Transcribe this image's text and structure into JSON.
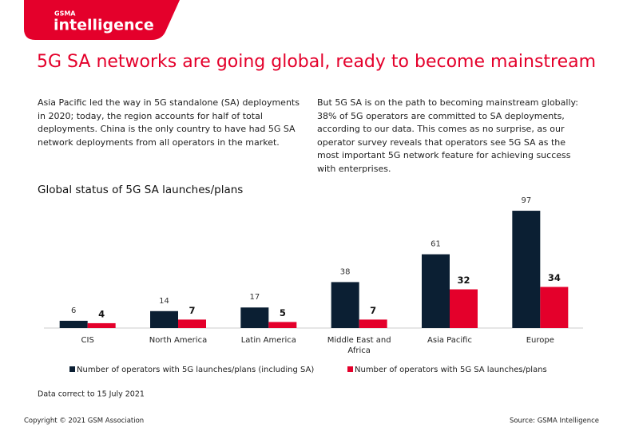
{
  "header": {
    "brand_small": "GSMA",
    "brand": "intelligence",
    "title": "5G SA networks are going global, ready to become mainstream"
  },
  "paragraphs": [
    "Asia Pacific led the way in 5G standalone (SA) deployments in 2020; today, the region accounts for half of total deployments. China is the only country to have had 5G SA network deployments from all operators in the market.",
    "But 5G SA is on the path to becoming mainstream globally: 38% of 5G operators are committed to SA deployments, according to our data. This comes as no surprise, as our operator survey reveals that operators see 5G SA as the most important 5G network feature for achieving success with enterprises."
  ],
  "chart_data": {
    "type": "bar",
    "title": "Global status of 5G SA launches/plans",
    "categories": [
      "CIS",
      "North America",
      "Latin America",
      "Middle East and Africa",
      "Asia Pacific",
      "Europe"
    ],
    "series": [
      {
        "name": "Number of operators with 5G launches/plans (including SA)",
        "color": "#0b1f33",
        "values": [
          6,
          14,
          17,
          38,
          61,
          97
        ]
      },
      {
        "name": "Number of operators with 5G SA launches/plans",
        "color": "#e4002b",
        "values": [
          4,
          7,
          5,
          7,
          32,
          34
        ]
      }
    ],
    "ylim": [
      0,
      100
    ],
    "legend": "bottom"
  },
  "note": "Data correct to 15 July 2021",
  "footer": {
    "copyright": "Copyright © 2021 GSM Association",
    "source": "Source: GSMA Intelligence"
  }
}
